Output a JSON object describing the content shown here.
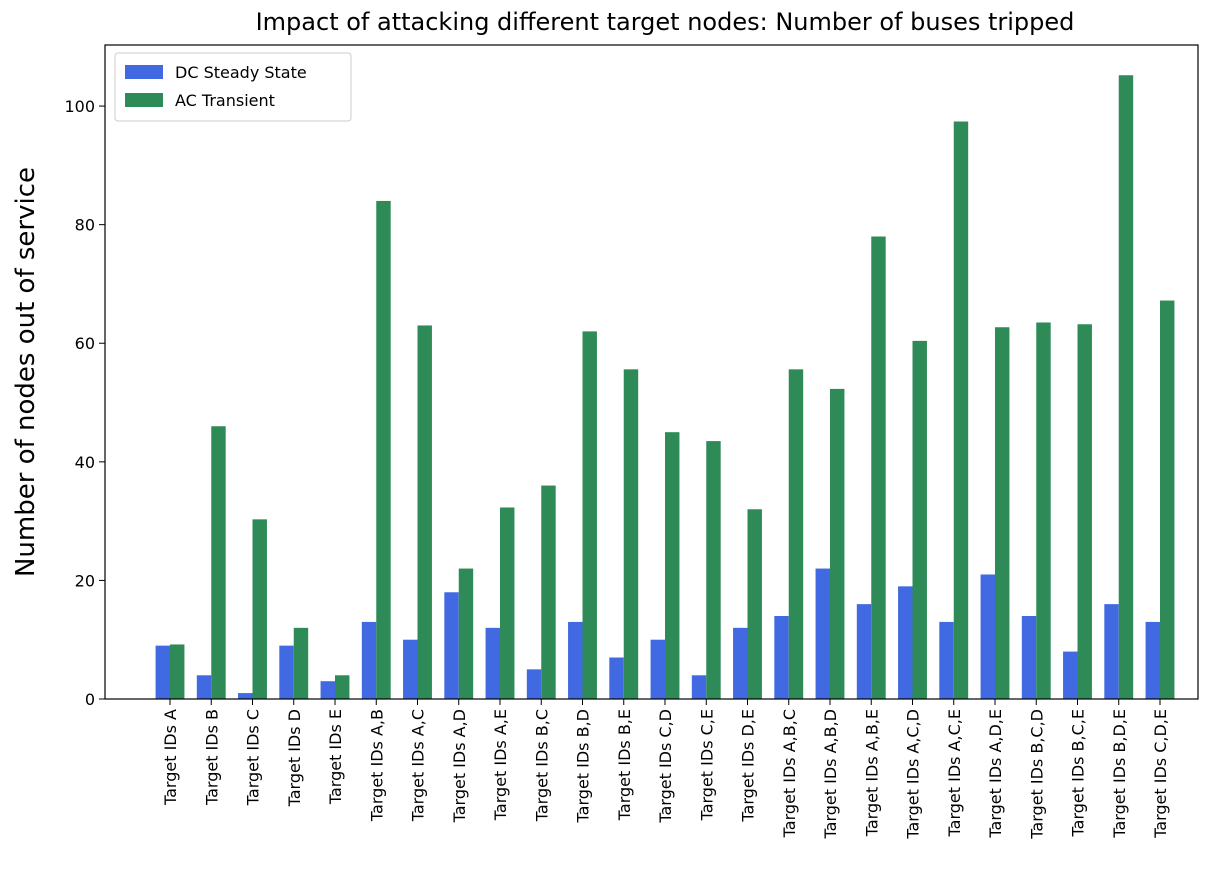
{
  "chart_data": {
    "type": "bar",
    "title": "Impact of attacking different target nodes: Number of buses tripped",
    "y_label": "Number of nodes out of service",
    "categories": [
      "Target IDs A",
      "Target IDs B",
      "Target IDs C",
      "Target IDs D",
      "Target IDs E",
      "Target IDs A,B",
      "Target IDs A,C",
      "Target IDs A,D",
      "Target IDs A,E",
      "Target IDs B,C",
      "Target IDs B,D",
      "Target IDs B,E",
      "Target IDs C,D",
      "Target IDs C,E",
      "Target IDs D,E",
      "Target IDs A,B,C",
      "Target IDs A,B,D",
      "Target IDs A,B,E",
      "Target IDs A,C,D",
      "Target IDs A,C,E",
      "Target IDs A,D,E",
      "Target IDs B,C,D",
      "Target IDs B,C,E",
      "Target IDs B,D,E",
      "Target IDs C,D,E"
    ],
    "series": [
      {
        "name": "DC Steady State",
        "color": "#4169e1",
        "values": [
          9,
          4,
          1,
          9,
          3,
          13,
          10,
          18,
          12,
          5,
          13,
          7,
          10,
          4,
          12,
          14,
          22,
          16,
          19,
          13,
          21,
          14,
          8,
          16,
          13
        ]
      },
      {
        "name": "AC Transient",
        "color": "#2e8b57",
        "values": [
          9.2,
          46,
          30.3,
          12,
          4,
          84,
          63,
          22,
          32.3,
          36,
          62,
          55.6,
          45,
          43.5,
          32,
          55.6,
          52.3,
          78,
          60.4,
          97.4,
          62.7,
          63.5,
          63.2,
          105.2,
          67.2
        ]
      }
    ],
    "ylim": [
      0,
      110.3
    ],
    "yticks": [
      0,
      20,
      40,
      60,
      80,
      100
    ],
    "legend": "upper left"
  }
}
